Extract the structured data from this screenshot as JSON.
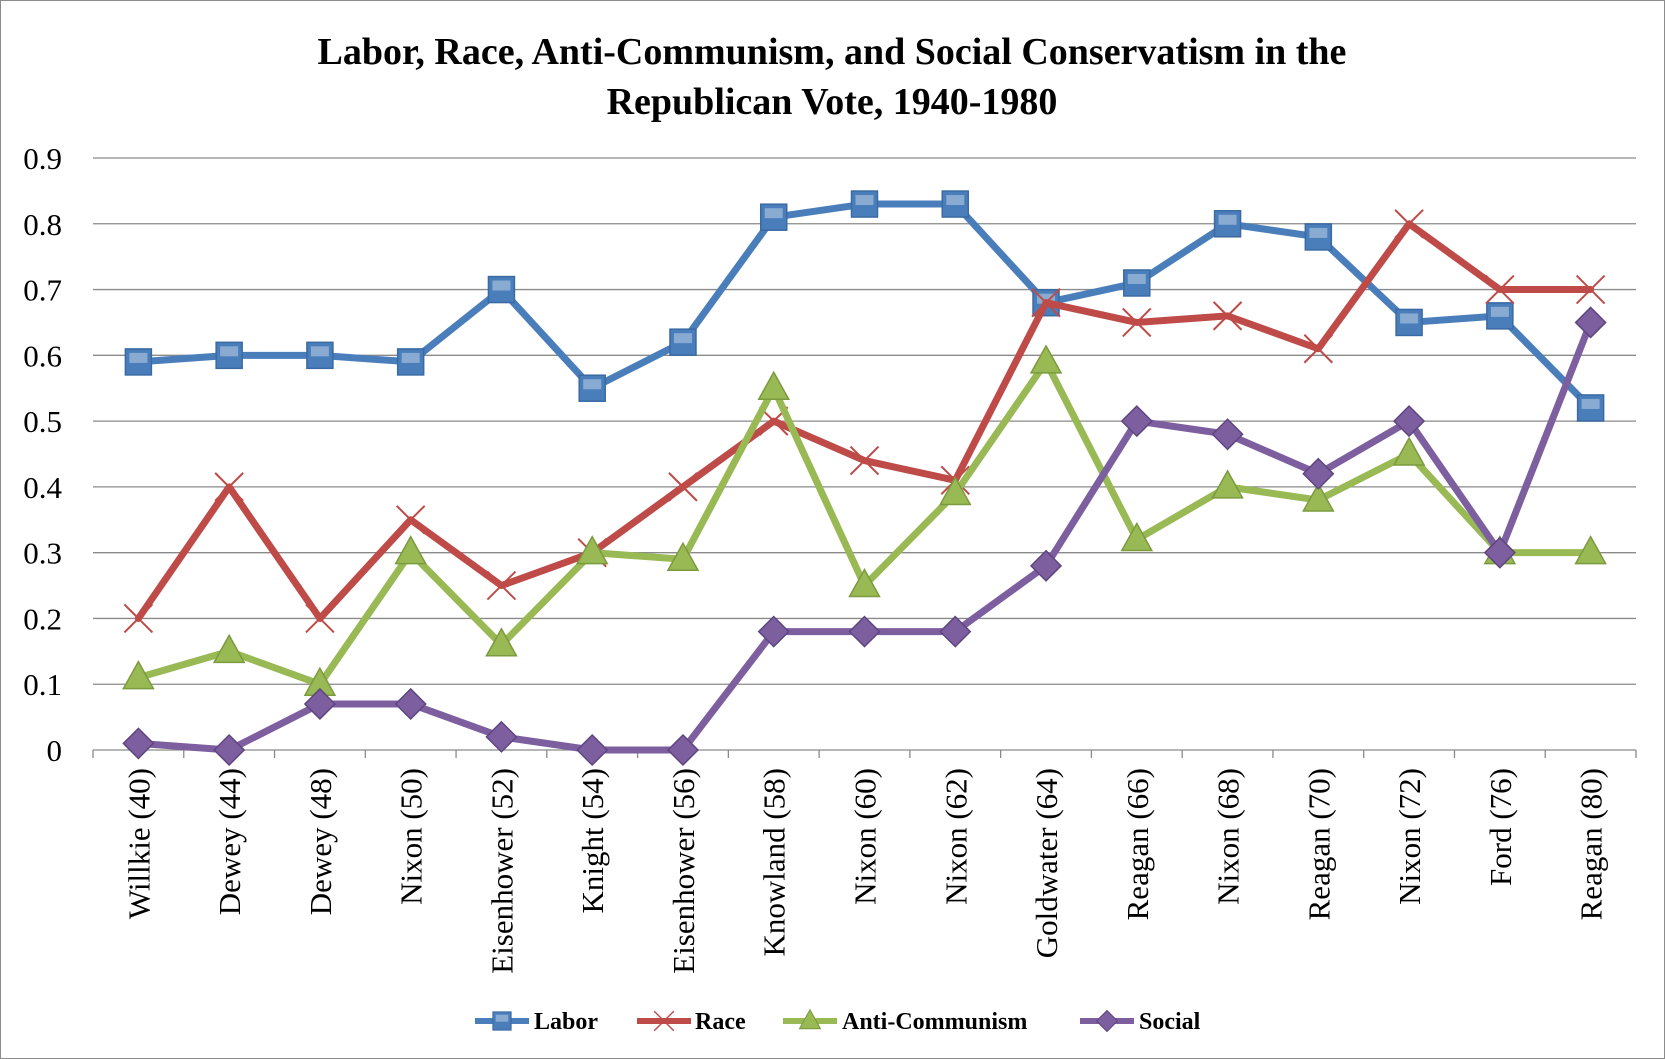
{
  "chart_data": {
    "type": "line",
    "title": [
      "Labor, Race, Anti-Communism, and Social Conservatism in the",
      "Republican Vote, 1940-1980"
    ],
    "xlabel": "",
    "ylabel": "",
    "ylim": [
      0,
      0.9
    ],
    "yticks": [
      "0",
      "0.1",
      "0.2",
      "0.3",
      "0.4",
      "0.5",
      "0.6",
      "0.7",
      "0.8",
      "0.9"
    ],
    "grid": "horizontal",
    "legend_position": "bottom",
    "categories": [
      "Willkie (40)",
      "Dewey (44)",
      "Dewey (48)",
      "Nixon (50)",
      "Eisenhower (52)",
      "Knight (54)",
      "Eisenhower (56)",
      "Knowland (58)",
      "Nixon (60)",
      "Nixon (62)",
      "Goldwater (64)",
      "Reagan (66)",
      "Nixon (68)",
      "Reagan (70)",
      "Nixon (72)",
      "Ford (76)",
      "Reagan (80)"
    ],
    "series": [
      {
        "name": "Labor",
        "color": "#4a7ebb",
        "marker": "square",
        "values": [
          0.59,
          0.6,
          0.6,
          0.59,
          0.7,
          0.55,
          0.62,
          0.81,
          0.83,
          0.83,
          0.68,
          0.71,
          0.8,
          0.78,
          0.65,
          0.66,
          0.52
        ]
      },
      {
        "name": "Race",
        "color": "#be4b48",
        "marker": "x",
        "values": [
          0.2,
          0.4,
          0.2,
          0.35,
          0.25,
          0.3,
          0.4,
          0.5,
          0.44,
          0.41,
          0.68,
          0.65,
          0.66,
          0.61,
          0.8,
          0.7,
          0.7
        ]
      },
      {
        "name": "Anti-Communism",
        "color": "#98b954",
        "marker": "triangle",
        "values": [
          0.11,
          0.15,
          0.1,
          0.3,
          0.16,
          0.3,
          0.29,
          0.55,
          0.25,
          0.39,
          0.59,
          0.32,
          0.4,
          0.38,
          0.45,
          0.3,
          0.3
        ]
      },
      {
        "name": "Social",
        "color": "#7d5fa0",
        "marker": "diamond",
        "values": [
          0.01,
          0.0,
          0.07,
          0.07,
          0.02,
          0.0,
          0.0,
          0.18,
          0.18,
          0.18,
          0.28,
          0.5,
          0.48,
          0.42,
          0.5,
          0.3,
          0.65
        ]
      }
    ]
  }
}
